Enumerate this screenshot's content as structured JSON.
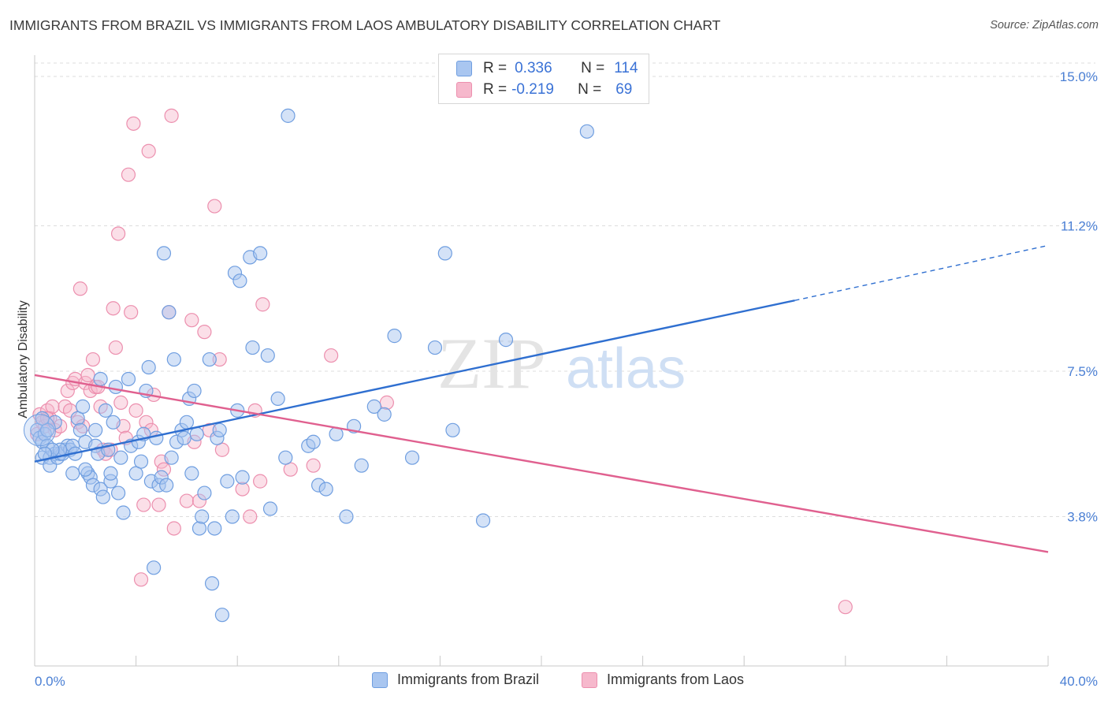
{
  "title": "IMMIGRANTS FROM BRAZIL VS IMMIGRANTS FROM LAOS AMBULATORY DISABILITY CORRELATION CHART",
  "source": "Source: ZipAtlas.com",
  "watermark": {
    "part1": "ZIP",
    "part2": "atlas"
  },
  "legend": {
    "r_label": "R =",
    "n_label": "N =",
    "brazil": {
      "r": "0.336",
      "n": "114"
    },
    "laos": {
      "r": "-0.219",
      "n": "69"
    }
  },
  "colors": {
    "brazil_fill": "#a9c6f0",
    "brazil_stroke": "#6f9ee0",
    "brazil_line": "#2f6fd0",
    "laos_fill": "#f6b8cc",
    "laos_stroke": "#ec8fae",
    "laos_line": "#e0608f",
    "tick_text": "#4a7fd4",
    "grid": "#dddddd"
  },
  "chart_data": {
    "type": "scatter",
    "title": "IMMIGRANTS FROM BRAZIL VS IMMIGRANTS FROM LAOS AMBULATORY DISABILITY CORRELATION CHART",
    "xlabel": "",
    "ylabel": "Ambulatory Disability",
    "xlim": [
      0,
      40
    ],
    "ylim": [
      0,
      15.7
    ],
    "x_tick_labels": [
      "0.0%",
      "40.0%"
    ],
    "y_ticks": [
      3.8,
      7.5,
      11.2,
      15.0
    ],
    "y_tick_labels": [
      "3.8%",
      "7.5%",
      "11.2%",
      "15.0%"
    ],
    "grid": "horizontal dashed",
    "legend_position": "top-center",
    "series": [
      {
        "name": "Immigrants from Brazil",
        "r": 0.336,
        "n": 114,
        "trend": {
          "x": [
            0,
            30,
            40
          ],
          "y": [
            5.2,
            9.3,
            10.7
          ],
          "dashed_from_x": 30
        },
        "points": [
          [
            0.1,
            6.0
          ],
          [
            0.2,
            5.8
          ],
          [
            0.3,
            5.7
          ],
          [
            0.4,
            5.9
          ],
          [
            0.5,
            5.6
          ],
          [
            0.3,
            5.3
          ],
          [
            0.6,
            5.3
          ],
          [
            0.6,
            5.1
          ],
          [
            0.8,
            5.4
          ],
          [
            0.9,
            5.3
          ],
          [
            1.0,
            5.4
          ],
          [
            1.1,
            5.4
          ],
          [
            1.2,
            5.5
          ],
          [
            1.3,
            5.6
          ],
          [
            1.4,
            5.5
          ],
          [
            1.5,
            5.6
          ],
          [
            1.6,
            5.4
          ],
          [
            1.7,
            6.3
          ],
          [
            1.8,
            6.0
          ],
          [
            1.9,
            6.6
          ],
          [
            2.0,
            5.7
          ],
          [
            2.1,
            4.9
          ],
          [
            2.2,
            4.8
          ],
          [
            2.3,
            4.6
          ],
          [
            2.4,
            5.6
          ],
          [
            2.5,
            5.4
          ],
          [
            2.6,
            4.5
          ],
          [
            2.7,
            4.3
          ],
          [
            2.8,
            6.5
          ],
          [
            2.9,
            5.5
          ],
          [
            2.6,
            7.3
          ],
          [
            3.0,
            4.7
          ],
          [
            3.0,
            4.9
          ],
          [
            3.2,
            7.1
          ],
          [
            3.4,
            5.3
          ],
          [
            3.5,
            3.9
          ],
          [
            3.7,
            7.3
          ],
          [
            3.8,
            5.6
          ],
          [
            4.0,
            4.9
          ],
          [
            4.1,
            5.7
          ],
          [
            4.2,
            5.2
          ],
          [
            4.3,
            5.9
          ],
          [
            4.4,
            7.0
          ],
          [
            4.5,
            7.6
          ],
          [
            4.6,
            4.7
          ],
          [
            4.8,
            5.8
          ],
          [
            4.9,
            4.6
          ],
          [
            5.0,
            4.8
          ],
          [
            5.1,
            10.5
          ],
          [
            5.2,
            4.6
          ],
          [
            5.4,
            5.3
          ],
          [
            5.5,
            7.8
          ],
          [
            5.6,
            5.7
          ],
          [
            5.8,
            6.0
          ],
          [
            5.9,
            5.8
          ],
          [
            6.0,
            6.2
          ],
          [
            6.1,
            6.8
          ],
          [
            6.2,
            4.9
          ],
          [
            6.3,
            7.0
          ],
          [
            6.5,
            3.5
          ],
          [
            6.6,
            3.8
          ],
          [
            6.7,
            4.4
          ],
          [
            6.9,
            7.8
          ],
          [
            7.0,
            2.1
          ],
          [
            7.1,
            3.5
          ],
          [
            7.2,
            5.8
          ],
          [
            7.4,
            1.3
          ],
          [
            7.6,
            4.7
          ],
          [
            7.8,
            3.8
          ],
          [
            7.9,
            10.0
          ],
          [
            8.1,
            9.8
          ],
          [
            8.2,
            4.8
          ],
          [
            8.5,
            10.4
          ],
          [
            8.6,
            8.1
          ],
          [
            8.9,
            10.5
          ],
          [
            9.2,
            7.9
          ],
          [
            9.3,
            4.0
          ],
          [
            9.6,
            6.8
          ],
          [
            9.9,
            5.3
          ],
          [
            10.0,
            14.0
          ],
          [
            10.8,
            5.6
          ],
          [
            11.0,
            5.7
          ],
          [
            11.2,
            4.6
          ],
          [
            11.5,
            4.5
          ],
          [
            11.9,
            5.9
          ],
          [
            12.3,
            3.8
          ],
          [
            12.6,
            6.1
          ],
          [
            12.9,
            5.1
          ],
          [
            13.4,
            6.6
          ],
          [
            13.8,
            6.4
          ],
          [
            14.2,
            8.4
          ],
          [
            14.9,
            5.3
          ],
          [
            15.8,
            8.1
          ],
          [
            16.2,
            10.5
          ],
          [
            16.5,
            6.0
          ],
          [
            17.7,
            3.7
          ],
          [
            18.6,
            8.3
          ],
          [
            21.8,
            13.6
          ],
          [
            2.0,
            5.0
          ],
          [
            3.1,
            6.2
          ],
          [
            1.0,
            5.5
          ],
          [
            4.7,
            2.5
          ],
          [
            0.8,
            6.2
          ],
          [
            0.5,
            6.0
          ],
          [
            0.7,
            5.5
          ],
          [
            1.5,
            4.9
          ],
          [
            3.3,
            4.4
          ],
          [
            5.3,
            9.0
          ],
          [
            6.4,
            5.9
          ],
          [
            7.3,
            6.0
          ],
          [
            2.4,
            6.0
          ],
          [
            8.0,
            6.5
          ],
          [
            0.3,
            6.3
          ],
          [
            0.4,
            5.4
          ]
        ]
      },
      {
        "name": "Immigrants from Laos",
        "r": -0.219,
        "n": 69,
        "trend": {
          "x": [
            0,
            40
          ],
          "y": [
            7.4,
            2.9
          ]
        },
        "points": [
          [
            0.1,
            5.9
          ],
          [
            0.2,
            6.4
          ],
          [
            0.3,
            6.2
          ],
          [
            0.4,
            6.1
          ],
          [
            0.5,
            6.5
          ],
          [
            0.6,
            6.3
          ],
          [
            0.7,
            6.6
          ],
          [
            0.8,
            6.0
          ],
          [
            1.0,
            6.1
          ],
          [
            1.2,
            6.6
          ],
          [
            1.3,
            7.0
          ],
          [
            1.4,
            6.5
          ],
          [
            1.5,
            7.2
          ],
          [
            1.6,
            7.3
          ],
          [
            1.7,
            6.2
          ],
          [
            1.8,
            9.6
          ],
          [
            1.9,
            6.1
          ],
          [
            2.0,
            7.2
          ],
          [
            2.1,
            7.4
          ],
          [
            2.2,
            7.0
          ],
          [
            2.3,
            7.8
          ],
          [
            2.4,
            7.1
          ],
          [
            2.5,
            7.1
          ],
          [
            2.6,
            6.6
          ],
          [
            2.7,
            5.5
          ],
          [
            2.8,
            5.4
          ],
          [
            3.0,
            5.5
          ],
          [
            3.1,
            9.1
          ],
          [
            3.2,
            8.1
          ],
          [
            3.3,
            11.0
          ],
          [
            3.4,
            6.7
          ],
          [
            3.5,
            6.1
          ],
          [
            3.6,
            5.8
          ],
          [
            3.7,
            12.5
          ],
          [
            3.8,
            9.0
          ],
          [
            3.9,
            13.8
          ],
          [
            4.0,
            6.5
          ],
          [
            4.2,
            2.2
          ],
          [
            4.3,
            4.1
          ],
          [
            4.4,
            6.2
          ],
          [
            4.5,
            13.1
          ],
          [
            4.6,
            6.0
          ],
          [
            4.7,
            6.9
          ],
          [
            4.9,
            4.1
          ],
          [
            5.0,
            5.2
          ],
          [
            5.1,
            5.0
          ],
          [
            5.3,
            9.0
          ],
          [
            5.4,
            14.0
          ],
          [
            5.5,
            3.5
          ],
          [
            6.0,
            4.2
          ],
          [
            6.2,
            8.8
          ],
          [
            6.3,
            5.7
          ],
          [
            6.5,
            4.2
          ],
          [
            6.7,
            8.5
          ],
          [
            6.9,
            6.0
          ],
          [
            7.1,
            11.7
          ],
          [
            7.3,
            7.8
          ],
          [
            7.4,
            5.5
          ],
          [
            8.2,
            4.5
          ],
          [
            8.5,
            3.8
          ],
          [
            8.7,
            6.5
          ],
          [
            8.9,
            4.7
          ],
          [
            9.0,
            9.2
          ],
          [
            10.1,
            5.0
          ],
          [
            11.0,
            5.1
          ],
          [
            11.7,
            7.9
          ],
          [
            13.9,
            6.7
          ],
          [
            32.0,
            1.5
          ],
          [
            0.5,
            6.3
          ]
        ]
      }
    ]
  },
  "axis": {
    "ylabel": "Ambulatory Disability",
    "x_left": "0.0%",
    "x_right": "40.0%",
    "y_labels": [
      "3.8%",
      "7.5%",
      "11.2%",
      "15.0%"
    ]
  },
  "bottom_legend": {
    "brazil": "Immigrants from Brazil",
    "laos": "Immigrants from Laos"
  }
}
